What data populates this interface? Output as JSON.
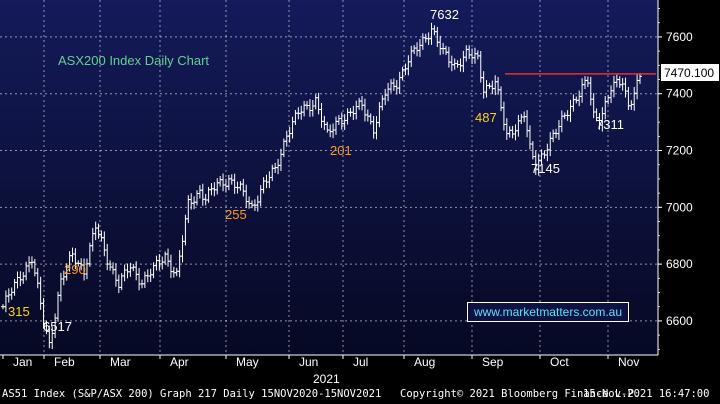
{
  "chart_data": {
    "type": "ohlc",
    "title": "ASX200 Index Daily Chart",
    "watermark": "www.marketmatters.com.au",
    "ylim": [
      6480,
      7730
    ],
    "yticks": [
      6600,
      6800,
      7000,
      7200,
      7400,
      7600
    ],
    "ytick_labels": [
      "6600",
      "6800",
      "7000",
      "7200",
      "7400",
      "7600"
    ],
    "months": [
      "Jan",
      "Feb",
      "Mar",
      "Apr",
      "May",
      "Jun",
      "Jul",
      "Aug",
      "Sep",
      "Oct",
      "Nov"
    ],
    "year_label": "2021",
    "last_value": "7470.100",
    "resistance_level": 7470,
    "path_points": [
      [
        0,
        6650
      ],
      [
        6,
        6760
      ],
      [
        10,
        6820
      ],
      [
        14,
        6600
      ],
      [
        16,
        6517
      ],
      [
        20,
        6740
      ],
      [
        24,
        6830
      ],
      [
        28,
        6780
      ],
      [
        32,
        6930
      ],
      [
        36,
        6820
      ],
      [
        40,
        6730
      ],
      [
        44,
        6790
      ],
      [
        48,
        6740
      ],
      [
        52,
        6780
      ],
      [
        56,
        6830
      ],
      [
        60,
        6760
      ],
      [
        64,
        7010
      ],
      [
        68,
        7060
      ],
      [
        70,
        7030
      ],
      [
        74,
        7080
      ],
      [
        78,
        7100
      ],
      [
        82,
        7060
      ],
      [
        86,
        7000
      ],
      [
        90,
        7080
      ],
      [
        94,
        7130
      ],
      [
        98,
        7260
      ],
      [
        102,
        7330
      ],
      [
        106,
        7360
      ],
      [
        108,
        7380
      ],
      [
        112,
        7250
      ],
      [
        116,
        7310
      ],
      [
        120,
        7330
      ],
      [
        124,
        7360
      ],
      [
        128,
        7280
      ],
      [
        132,
        7400
      ],
      [
        136,
        7440
      ],
      [
        140,
        7520
      ],
      [
        144,
        7570
      ],
      [
        148,
        7632
      ],
      [
        152,
        7540
      ],
      [
        156,
        7500
      ],
      [
        160,
        7540
      ],
      [
        164,
        7520
      ],
      [
        166,
        7420
      ],
      [
        170,
        7440
      ],
      [
        174,
        7250
      ],
      [
        178,
        7300
      ],
      [
        180,
        7330
      ],
      [
        182,
        7200
      ],
      [
        184,
        7145
      ],
      [
        188,
        7220
      ],
      [
        192,
        7280
      ],
      [
        196,
        7360
      ],
      [
        200,
        7420
      ],
      [
        202,
        7440
      ],
      [
        204,
        7320
      ],
      [
        206,
        7311
      ],
      [
        210,
        7420
      ],
      [
        214,
        7440
      ],
      [
        216,
        7360
      ],
      [
        220,
        7460
      ]
    ],
    "annotations": [
      {
        "text": "7632",
        "color": "#ffffff"
      },
      {
        "text": "487",
        "color": "#ffd21f"
      },
      {
        "text": "7311",
        "color": "#ffffff"
      },
      {
        "text": "7145",
        "color": "#ffffff"
      },
      {
        "text": "201",
        "color": "#ff9a1f"
      },
      {
        "text": "255",
        "color": "#ff9a1f"
      },
      {
        "text": "290",
        "color": "#ff9a1f"
      },
      {
        "text": "315",
        "color": "#ffd21f"
      },
      {
        "text": "6517",
        "color": "#ffffff"
      }
    ],
    "colors": {
      "background": "#000000",
      "plot_top": "#141a5a",
      "plot_bottom": "#060923",
      "bars": "#ffffff",
      "resistance_line": "#e53030",
      "title": "#5fd38d",
      "url": "#5fe0ff"
    }
  },
  "footer": {
    "left": "AS51 Index (S&P/ASX 200) Graph 217  Daily 15NOV2020-15NOV2021",
    "center": "Copyright© 2021 Bloomberg Finance L.P.",
    "right": "15-Nov-2021 16:47:00"
  }
}
